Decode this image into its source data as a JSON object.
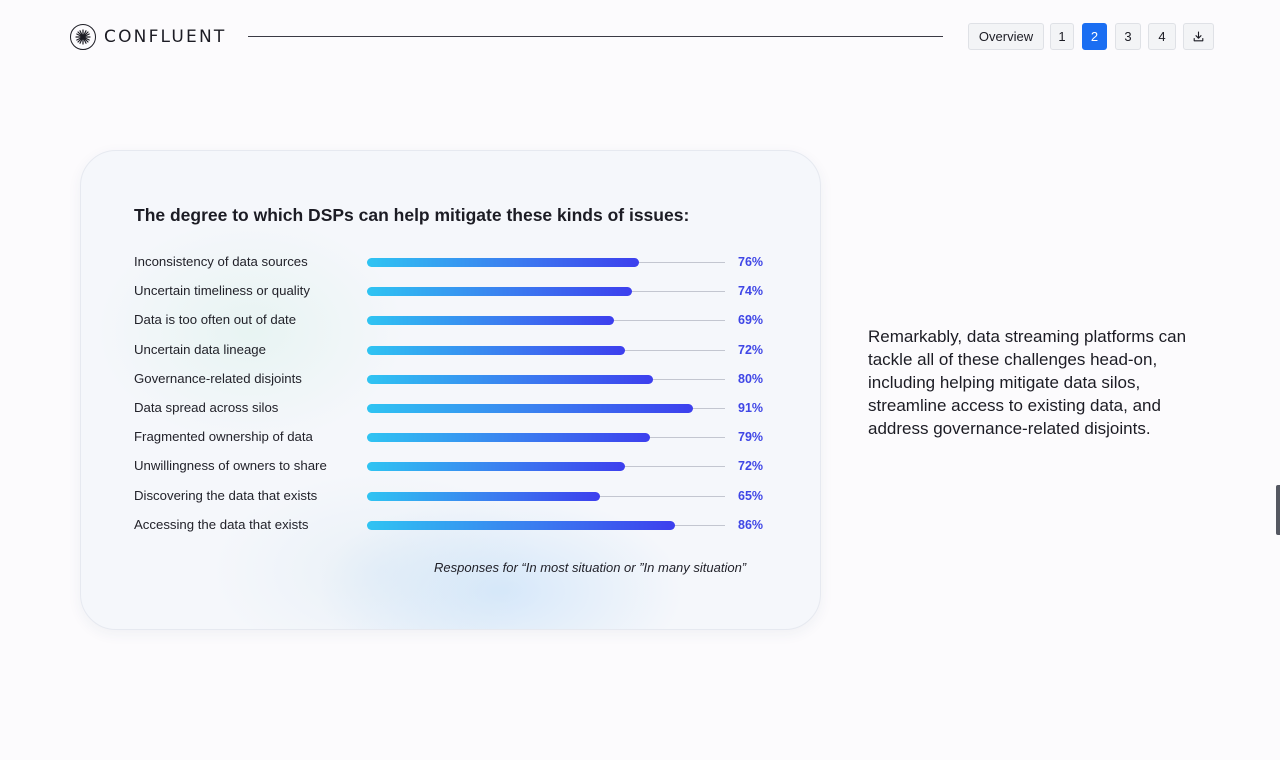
{
  "header": {
    "brand": "CONFLUENT",
    "nav": [
      {
        "label": "Overview",
        "active": false
      },
      {
        "label": "1",
        "active": false
      },
      {
        "label": "2",
        "active": true
      },
      {
        "label": "3",
        "active": false
      },
      {
        "label": "4",
        "active": false
      }
    ],
    "download_icon": "download-icon"
  },
  "card": {
    "title": "The degree to which DSPs can help mitigate these kinds of issues:",
    "note": "Responses for “In most situation or ”In many situation”"
  },
  "chart_data": {
    "type": "bar",
    "orientation": "horizontal",
    "categories": [
      "Inconsistency of data sources",
      "Uncertain timeliness or quality",
      "Data is too often out of date",
      "Uncertain data lineage",
      "Governance-related disjoints",
      "Data spread across silos",
      "Fragmented ownership of data",
      "Unwillingness of owners to share",
      "Discovering the data that exists",
      "Accessing the data that exists"
    ],
    "values": [
      76,
      74,
      69,
      72,
      80,
      91,
      79,
      72,
      65,
      86
    ],
    "value_labels": [
      "76%",
      "74%",
      "69%",
      "72%",
      "80%",
      "91%",
      "79%",
      "72%",
      "65%",
      "86%"
    ],
    "xlim": [
      0,
      100
    ],
    "title": "The degree to which DSPs can help mitigate these kinds of issues:"
  },
  "side": {
    "text": "Remarkably, data streaming platforms can tackle all of these challenges head-on, including helping mitigate data silos, streamline access to existing data, and address governance-related disjoints."
  },
  "colors": {
    "accent": "#1a6ef2",
    "bar_start": "#2fc4f2",
    "bar_end": "#3d3fee",
    "value_text": "#3f46e6"
  }
}
